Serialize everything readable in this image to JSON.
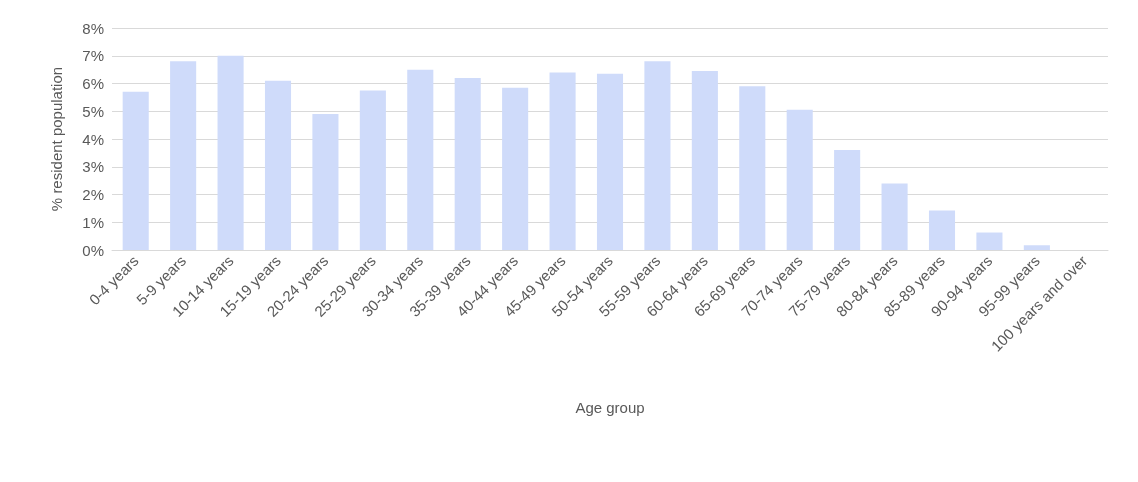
{
  "chart_data": {
    "type": "bar",
    "xlabel": "Age group",
    "ylabel": "% resident population",
    "categories": [
      "0-4 years",
      "5-9 years",
      "10-14 years",
      "15-19 years",
      "20-24 years",
      "25-29 years",
      "30-34 years",
      "35-39 years",
      "40-44 years",
      "45-49 years",
      "50-54 years",
      "55-59 years",
      "60-64 years",
      "65-69 years",
      "70-74 years",
      "75-79 years",
      "80-84 years",
      "85-89 years",
      "90-94 years",
      "95-99 years",
      "100 years and over"
    ],
    "values": [
      5.7,
      6.8,
      7.0,
      6.1,
      4.9,
      5.75,
      6.5,
      6.2,
      5.85,
      6.4,
      6.35,
      6.8,
      6.45,
      5.9,
      5.05,
      3.6,
      2.4,
      1.42,
      0.63,
      0.17,
      null
    ],
    "color": "#cfdbfa",
    "ylim": [
      0,
      8
    ],
    "yticks": [
      {
        "value": 0,
        "label": "0%"
      },
      {
        "value": 1,
        "label": "1%"
      },
      {
        "value": 2,
        "label": "2%"
      },
      {
        "value": 3,
        "label": "3%"
      },
      {
        "value": 4,
        "label": "4%"
      },
      {
        "value": 5,
        "label": "5%"
      },
      {
        "value": 6,
        "label": "6%"
      },
      {
        "value": 7,
        "label": "7%"
      },
      {
        "value": 8,
        "label": "8%"
      }
    ],
    "grid": "y"
  }
}
